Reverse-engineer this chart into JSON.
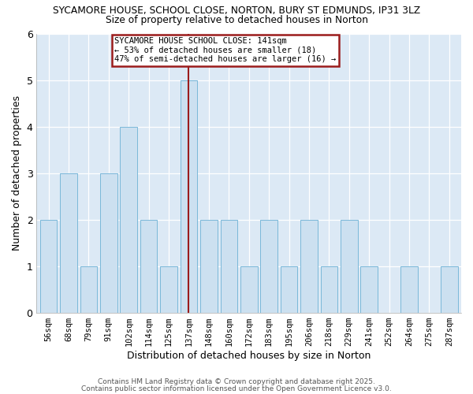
{
  "title1": "SYCAMORE HOUSE, SCHOOL CLOSE, NORTON, BURY ST EDMUNDS, IP31 3LZ",
  "title2": "Size of property relative to detached houses in Norton",
  "xlabel": "Distribution of detached houses by size in Norton",
  "ylabel": "Number of detached properties",
  "categories": [
    "56sqm",
    "68sqm",
    "79sqm",
    "91sqm",
    "102sqm",
    "114sqm",
    "125sqm",
    "137sqm",
    "148sqm",
    "160sqm",
    "172sqm",
    "183sqm",
    "195sqm",
    "206sqm",
    "218sqm",
    "229sqm",
    "241sqm",
    "252sqm",
    "264sqm",
    "275sqm",
    "287sqm"
  ],
  "values": [
    2,
    3,
    1,
    3,
    4,
    2,
    1,
    5,
    2,
    2,
    1,
    2,
    1,
    2,
    1,
    2,
    1,
    0,
    1,
    0,
    1
  ],
  "highlight_index": 7,
  "bar_color": "#cce0f0",
  "bar_edgecolor": "#7ab8d9",
  "highlight_line_color": "#9b1c1c",
  "annotation_line1": "SYCAMORE HOUSE SCHOOL CLOSE: 141sqm",
  "annotation_line2": "← 53% of detached houses are smaller (18)",
  "annotation_line3": "47% of semi-detached houses are larger (16) →",
  "annotation_box_edgecolor": "#9b1c1c",
  "ylim": [
    0,
    6
  ],
  "yticks": [
    0,
    1,
    2,
    3,
    4,
    5,
    6
  ],
  "footer1": "Contains HM Land Registry data © Crown copyright and database right 2025.",
  "footer2": "Contains public sector information licensed under the Open Government Licence v3.0.",
  "bg_color": "#ffffff",
  "plot_bg_color": "#dce9f5"
}
